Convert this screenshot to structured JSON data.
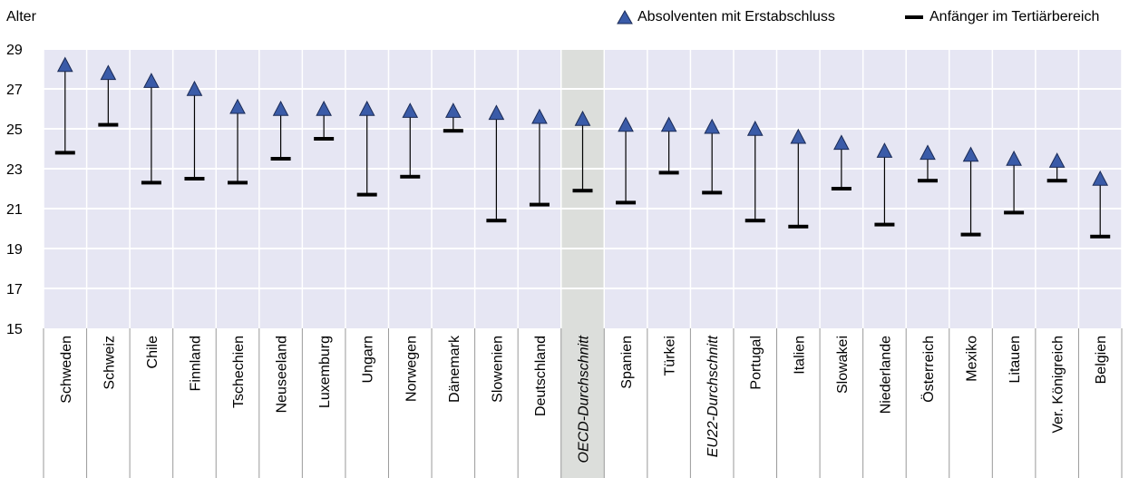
{
  "chart_data": {
    "type": "range-dot",
    "ylabel": "Alter",
    "ylim": [
      15,
      29
    ],
    "yticks": [
      15,
      17,
      19,
      21,
      23,
      25,
      27,
      29
    ],
    "grid": true,
    "legend_position": "top-right",
    "highlighted_categories": [
      "OECD-Durchschnitt"
    ],
    "italic_categories": [
      "OECD-Durchschnitt",
      "EU22-Durchschnitt"
    ],
    "categories": [
      "Schweden",
      "Schweiz",
      "Chile",
      "Finnland",
      "Tschechien",
      "Neuseeland",
      "Luxemburg",
      "Ungarn",
      "Norwegen",
      "Dänemark",
      "Slowenien",
      "Deutschland",
      "OECD-Durchschnitt",
      "Spanien",
      "Türkei",
      "EU22-Durchschnitt",
      "Portugal",
      "Italien",
      "Slowakei",
      "Niederlande",
      "Österreich",
      "Mexiko",
      "Litauen",
      "Ver. Königreich",
      "Belgien"
    ],
    "series": [
      {
        "name": "Absolventen mit Erstabschluss",
        "marker": "triangle",
        "color": "#3a5ba8",
        "values": [
          28.2,
          27.8,
          27.4,
          27.0,
          26.1,
          26.0,
          26.0,
          26.0,
          25.9,
          25.9,
          25.8,
          25.6,
          25.5,
          25.2,
          25.2,
          25.1,
          25.0,
          24.6,
          24.3,
          23.9,
          23.8,
          23.7,
          23.5,
          23.4,
          22.5
        ]
      },
      {
        "name": "Anfänger im Tertiärbereich",
        "marker": "dash",
        "color": "#000000",
        "values": [
          23.8,
          25.2,
          22.3,
          22.5,
          22.3,
          23.5,
          24.5,
          21.7,
          22.6,
          24.9,
          20.4,
          21.2,
          21.9,
          21.3,
          22.8,
          21.8,
          20.4,
          20.1,
          22.0,
          20.2,
          22.4,
          19.7,
          20.8,
          22.4,
          19.6
        ]
      }
    ]
  }
}
